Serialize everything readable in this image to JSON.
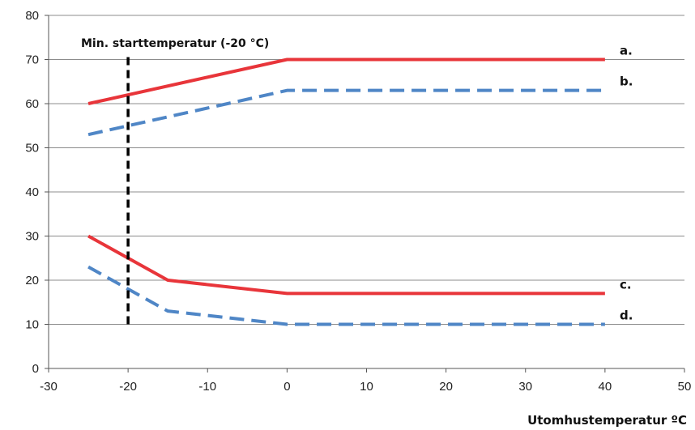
{
  "chart_data": {
    "type": "line",
    "title": "",
    "xlabel": "Utomhustemperatur ºC",
    "ylabel": "",
    "xlim": [
      -30,
      50
    ],
    "ylim": [
      0,
      80
    ],
    "x_ticks": [
      "-30",
      "-20",
      "-10",
      "0",
      "10",
      "20",
      "30",
      "40",
      "50"
    ],
    "y_ticks": [
      "0",
      "10",
      "20",
      "30",
      "40",
      "50",
      "60",
      "70",
      "80"
    ],
    "grid": "horizontal",
    "colors": {
      "solid": "#e8353a",
      "dashed": "#4f86c6",
      "marker": "#000000"
    },
    "series": [
      {
        "name": "a.",
        "style": "solid",
        "x": [
          -25,
          0,
          40
        ],
        "y": [
          60,
          70,
          70
        ]
      },
      {
        "name": "b.",
        "style": "dashed",
        "x": [
          -25,
          -15,
          0,
          40
        ],
        "y": [
          53,
          57,
          63,
          63
        ]
      },
      {
        "name": "c.",
        "style": "solid",
        "x": [
          -25,
          -15,
          0,
          40
        ],
        "y": [
          30,
          20,
          17,
          17
        ]
      },
      {
        "name": "d.",
        "style": "dashed",
        "x": [
          -25,
          -15,
          0,
          40
        ],
        "y": [
          23,
          13,
          10,
          10
        ]
      }
    ],
    "annotations": [
      {
        "text": "Min. starttemperatur (-20 °C)",
        "x": -20,
        "y_range": [
          10,
          71
        ]
      }
    ]
  }
}
